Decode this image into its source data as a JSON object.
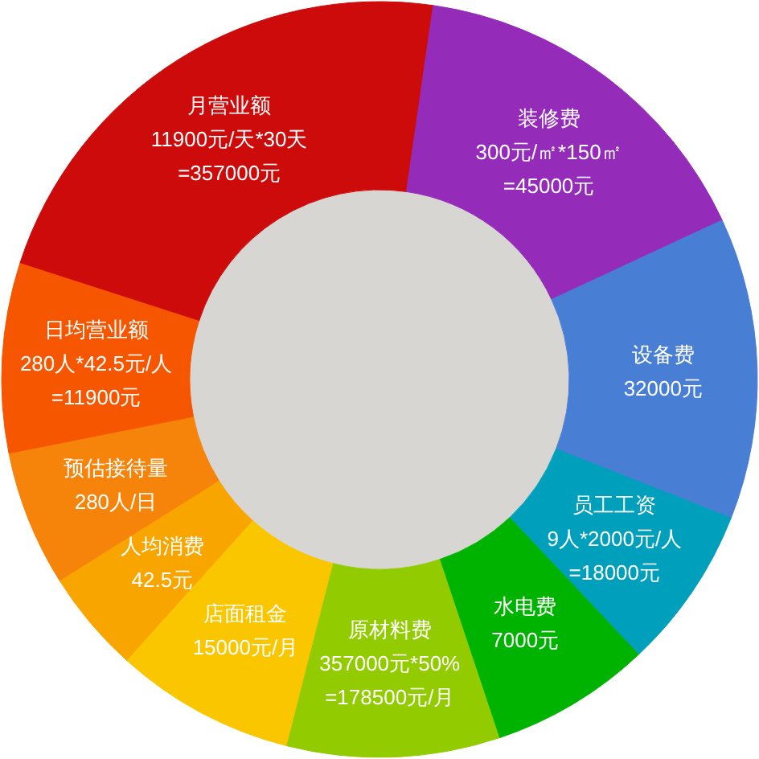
{
  "chart_data": {
    "type": "donut",
    "categories": [
      "月营业额",
      "装修费",
      "设备费",
      "员工工资",
      "水电费",
      "原材料费",
      "店面租金",
      "人均消费",
      "预估接待量",
      "日均营业额"
    ],
    "values": [
      22.3,
      15.8,
      12.9,
      7.0,
      6.9,
      9.1,
      7.7,
      4.4,
      5.8,
      8.1
    ],
    "colors": [
      "#cd0b0b",
      "#942cb9",
      "#487ed3",
      "#009fbb",
      "#01b301",
      "#92cc00",
      "#f9c600",
      "#f9a500",
      "#f6830a",
      "#f65600"
    ],
    "annotations": [
      {
        "text": "11900元/天*30天\n=357000元",
        "x": "月营业额"
      },
      {
        "text": "300元/㎡*150㎡\n=45000元",
        "x": "装修费"
      },
      {
        "text": "32000元",
        "x": "设备费"
      },
      {
        "text": "9人*2000元/人\n=18000元",
        "x": "员工工资"
      },
      {
        "text": "7000元",
        "x": "水电费"
      },
      {
        "text": "357000元*50%\n=178500元/月",
        "x": "原材料费"
      },
      {
        "text": "15000元/月",
        "x": "店面租金"
      },
      {
        "text": "42.5元",
        "x": "人均消费"
      },
      {
        "text": "280人/日",
        "x": "预估接待量"
      },
      {
        "text": "280人*42.5元/人\n=11900元",
        "x": "日均营业额"
      }
    ]
  }
}
